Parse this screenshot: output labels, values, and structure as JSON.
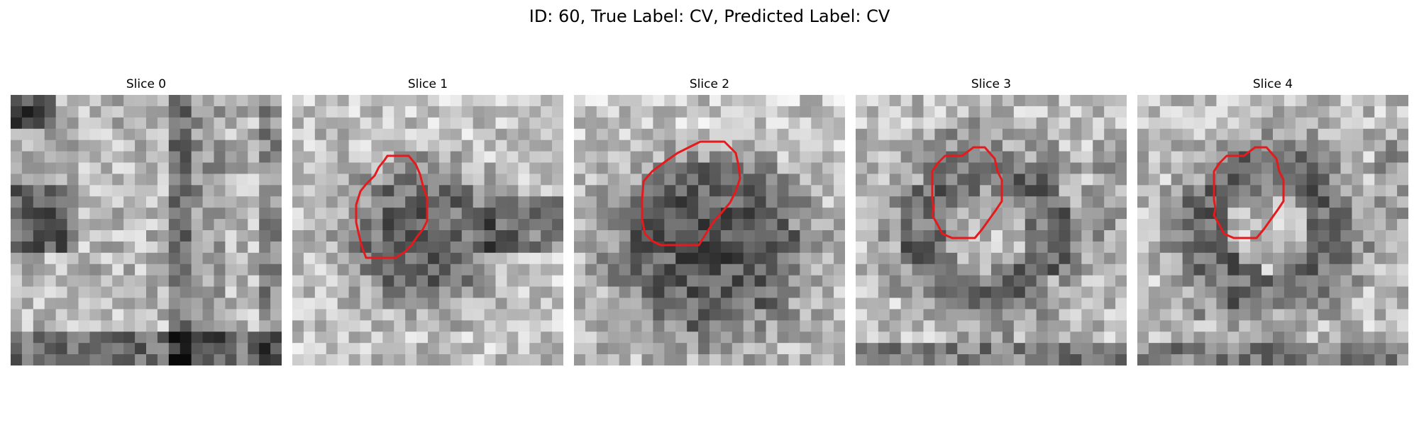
{
  "figure": {
    "title": "ID: 60, True Label: CV, Predicted Label: CV"
  },
  "panels": [
    {
      "title": "Slice 0",
      "has_contour": false
    },
    {
      "title": "Slice 1",
      "has_contour": true
    },
    {
      "title": "Slice 2",
      "has_contour": true
    },
    {
      "title": "Slice 3",
      "has_contour": true
    },
    {
      "title": "Slice 4",
      "has_contour": true
    }
  ],
  "colors": {
    "contour": "#e41a1c",
    "background": "#ffffff"
  }
}
